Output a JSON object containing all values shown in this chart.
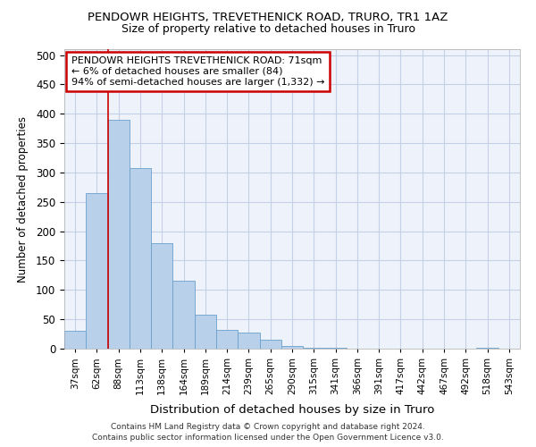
{
  "title": "PENDOWR HEIGHTS, TREVETHENICK ROAD, TRURO, TR1 1AZ",
  "subtitle": "Size of property relative to detached houses in Truro",
  "xlabel": "Distribution of detached houses by size in Truro",
  "ylabel": "Number of detached properties",
  "categories": [
    "37sqm",
    "62sqm",
    "88sqm",
    "113sqm",
    "138sqm",
    "164sqm",
    "189sqm",
    "214sqm",
    "239sqm",
    "265sqm",
    "290sqm",
    "315sqm",
    "341sqm",
    "366sqm",
    "391sqm",
    "417sqm",
    "442sqm",
    "467sqm",
    "492sqm",
    "518sqm",
    "543sqm"
  ],
  "values": [
    30,
    265,
    390,
    308,
    180,
    115,
    58,
    32,
    27,
    15,
    5,
    2,
    1,
    0,
    0,
    0,
    0,
    0,
    0,
    1,
    0
  ],
  "bar_color": "#b8d0ea",
  "bar_edge_color": "#6aa0cc",
  "redline_x": 1.5,
  "redline_label": "PENDOWR HEIGHTS TREVETHENICK ROAD: 71sqm",
  "redline_line1": "← 6% of detached houses are smaller (84)",
  "redline_line2": "94% of semi-detached houses are larger (1,332) →",
  "annotation_box_color": "#cc0000",
  "ylim": [
    0,
    510
  ],
  "yticks": [
    0,
    50,
    100,
    150,
    200,
    250,
    300,
    350,
    400,
    450,
    500
  ],
  "background_color": "#eef2fb",
  "grid_color": "#c5cfe8",
  "footer_line1": "Contains HM Land Registry data © Crown copyright and database right 2024.",
  "footer_line2": "Contains public sector information licensed under the Open Government Licence v3.0."
}
